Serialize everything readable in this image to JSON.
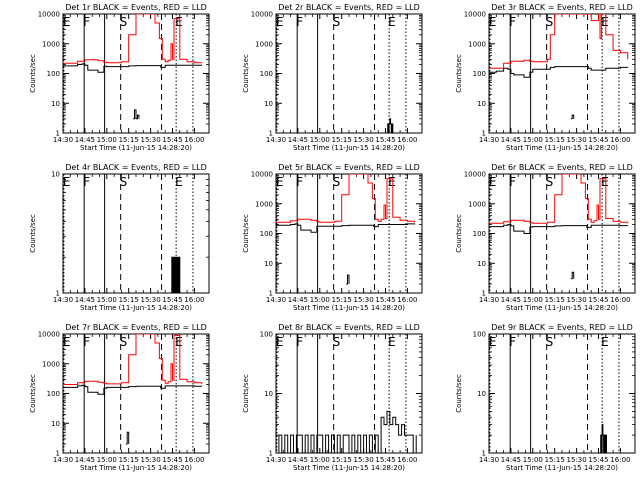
{
  "figure": {
    "x_axis_label": "Start Time (11-Jun-15 14:28:20)",
    "y_axis_label": "Counts/sec",
    "x_tick_labels": [
      "14:30",
      "14:45",
      "15:00",
      "15:15",
      "15:30",
      "15:45",
      "16:00"
    ],
    "x_ticks_minutes": [
      0,
      15,
      30,
      45,
      60,
      75,
      90
    ],
    "x_range_minutes": [
      0,
      100
    ],
    "series_colors": {
      "events": "#000000",
      "lld": "#ff0000"
    },
    "markers": [
      {
        "label": "E",
        "time_min": 0.6,
        "style": "dotted"
      },
      {
        "label": "F",
        "time_min": 14.5,
        "style": "solid"
      },
      {
        "label": "",
        "time_min": 28.5,
        "style": "solid"
      },
      {
        "label": "S",
        "time_min": 39.5,
        "style": "dashed"
      },
      {
        "label": "",
        "time_min": 67.5,
        "style": "dashed"
      },
      {
        "label": "E",
        "time_min": 77.5,
        "style": "dotted"
      },
      {
        "label": "",
        "time_min": 89,
        "style": "dotted"
      }
    ]
  },
  "chart_data": [
    {
      "type": "line",
      "title": "Det 1r BLACK = Events, RED = LLD",
      "xlabel": "Start Time (11-Jun-15 14:28:20)",
      "ylabel": "Counts/sec",
      "yscale": "log",
      "ylim": [
        1,
        10000
      ],
      "y_tick_labels": [
        "1",
        "10",
        "100",
        "1000",
        "10000"
      ],
      "series": [
        {
          "name": "Events",
          "color": "#000000",
          "x": [
            0,
            10,
            13,
            15,
            17,
            24,
            28,
            30,
            45,
            50,
            67,
            70,
            90,
            95
          ],
          "y": [
            180,
            200,
            210,
            190,
            130,
            110,
            175,
            170,
            180,
            185,
            160,
            190,
            190,
            185
          ]
        },
        {
          "name": "LLD",
          "color": "#ff0000",
          "x": [
            0,
            10,
            15,
            24,
            28,
            30,
            40,
            45,
            50,
            55,
            60,
            63,
            66,
            68,
            70,
            72,
            74,
            75,
            76,
            80,
            85,
            90,
            95
          ],
          "y": [
            220,
            260,
            290,
            270,
            240,
            230,
            250,
            2000,
            10000,
            10000,
            10000,
            5000,
            1500,
            300,
            250,
            280,
            1000,
            300,
            7000,
            300,
            250,
            230,
            220
          ]
        },
        {
          "name": "Events (sparse)",
          "color": "#000000",
          "x": [
            48,
            49,
            50,
            51,
            52
          ],
          "y": [
            3,
            6,
            3,
            4,
            3
          ]
        }
      ]
    },
    {
      "type": "line",
      "title": "Det 2r BLACK = Events, RED = LLD",
      "xlabel": "Start Time (11-Jun-15 14:28:20)",
      "ylabel": "Counts/sec",
      "yscale": "log",
      "ylim": [
        1,
        10000
      ],
      "y_tick_labels": [
        "1",
        "10",
        "100",
        "1000",
        "10000"
      ],
      "series": [
        {
          "name": "Events",
          "color": "#000000",
          "x": [
            76,
            76.5,
            77,
            77.5,
            78,
            78.5,
            79,
            79.5,
            80
          ],
          "y": [
            1,
            2,
            1,
            2,
            3,
            2,
            1,
            2,
            1
          ]
        }
      ]
    },
    {
      "type": "line",
      "title": "Det 3r BLACK = Events, RED = LLD",
      "xlabel": "Start Time (11-Jun-15 14:28:20)",
      "ylabel": "Counts/sec",
      "yscale": "log",
      "ylim": [
        1,
        10000
      ],
      "y_tick_labels": [
        "1",
        "10",
        "100",
        "1000",
        "10000"
      ],
      "series": [
        {
          "name": "Events",
          "color": "#000000",
          "x": [
            0,
            5,
            10,
            13,
            15,
            17,
            24,
            28,
            30,
            42,
            45,
            68,
            70,
            80,
            90,
            95
          ],
          "y": [
            110,
            120,
            150,
            140,
            100,
            90,
            75,
            110,
            140,
            160,
            170,
            150,
            130,
            150,
            160,
            155
          ]
        },
        {
          "name": "LLD",
          "color": "#ff0000",
          "x": [
            0,
            10,
            15,
            24,
            28,
            30,
            40,
            42,
            45,
            50,
            60,
            70,
            75,
            76,
            77,
            80,
            85,
            90,
            95
          ],
          "y": [
            150,
            220,
            260,
            280,
            260,
            250,
            300,
            2000,
            10000,
            10000,
            10000,
            6000,
            10000,
            1500,
            10000,
            2000,
            600,
            500,
            300
          ]
        },
        {
          "name": "Events (sparse)",
          "color": "#000000",
          "x": [
            56,
            57,
            58
          ],
          "y": [
            3,
            4,
            3
          ]
        }
      ]
    },
    {
      "type": "line",
      "title": "Det 4r BLACK = Events, RED = LLD",
      "xlabel": "Start Time (11-Jun-15 14:28:20)",
      "ylabel": "Counts/sec",
      "yscale": "log",
      "ylim": [
        1,
        10
      ],
      "y_tick_labels": [
        "1",
        "10"
      ],
      "series": [
        {
          "name": "Events",
          "color": "#000000",
          "x": [
            74,
            74.5,
            75,
            75.5,
            76,
            76.5,
            77,
            77.5,
            78,
            78.5,
            79,
            79.5,
            80
          ],
          "y": [
            1,
            2,
            1,
            2,
            1,
            2,
            1,
            2,
            1,
            2,
            1,
            2,
            1
          ]
        }
      ]
    },
    {
      "type": "line",
      "title": "Det 5r BLACK = Events, RED = LLD",
      "xlabel": "Start Time (11-Jun-15 14:28:20)",
      "ylabel": "Counts/sec",
      "yscale": "log",
      "ylim": [
        1,
        10000
      ],
      "y_tick_labels": [
        "1",
        "10",
        "100",
        "1000",
        "10000"
      ],
      "series": [
        {
          "name": "Events",
          "color": "#000000",
          "x": [
            0,
            10,
            13,
            15,
            17,
            24,
            28,
            30,
            45,
            50,
            67,
            70,
            90,
            95
          ],
          "y": [
            190,
            200,
            210,
            190,
            130,
            110,
            175,
            175,
            185,
            190,
            170,
            200,
            210,
            200
          ]
        },
        {
          "name": "LLD",
          "color": "#ff0000",
          "x": [
            0,
            10,
            15,
            24,
            28,
            30,
            40,
            45,
            50,
            55,
            60,
            63,
            66,
            68,
            70,
            72,
            74,
            75,
            76,
            80,
            85,
            90,
            95
          ],
          "y": [
            240,
            270,
            300,
            280,
            250,
            240,
            260,
            2000,
            10000,
            10000,
            10000,
            5000,
            1500,
            300,
            260,
            300,
            900,
            320,
            7000,
            350,
            280,
            260,
            240
          ]
        },
        {
          "name": "Events (sparse)",
          "color": "#000000",
          "x": [
            48,
            49,
            50
          ],
          "y": [
            2,
            4,
            2
          ]
        }
      ]
    },
    {
      "type": "line",
      "title": "Det 6r BLACK = Events, RED = LLD",
      "xlabel": "Start Time (11-Jun-15 14:28:20)",
      "ylabel": "Counts/sec",
      "yscale": "log",
      "ylim": [
        1,
        10000
      ],
      "y_tick_labels": [
        "1",
        "10",
        "100",
        "1000",
        "10000"
      ],
      "series": [
        {
          "name": "Events",
          "color": "#000000",
          "x": [
            0,
            10,
            13,
            15,
            17,
            24,
            28,
            30,
            45,
            50,
            67,
            70,
            90,
            95
          ],
          "y": [
            170,
            190,
            200,
            180,
            120,
            100,
            165,
            170,
            180,
            185,
            160,
            190,
            185,
            180
          ]
        },
        {
          "name": "LLD",
          "color": "#ff0000",
          "x": [
            0,
            10,
            15,
            24,
            28,
            30,
            40,
            45,
            50,
            55,
            60,
            63,
            66,
            68,
            70,
            72,
            74,
            75,
            76,
            80,
            85,
            90,
            95
          ],
          "y": [
            220,
            250,
            280,
            260,
            230,
            220,
            240,
            2000,
            10000,
            10000,
            10000,
            5000,
            1500,
            300,
            240,
            270,
            900,
            300,
            7000,
            320,
            260,
            240,
            220
          ]
        },
        {
          "name": "Events (sparse)",
          "color": "#000000",
          "x": [
            56,
            57,
            58
          ],
          "y": [
            3,
            5,
            3
          ]
        }
      ]
    },
    {
      "type": "line",
      "title": "Det 7r BLACK = Events, RED = LLD",
      "xlabel": "Start Time (11-Jun-15 14:28:20)",
      "ylabel": "Counts/sec",
      "yscale": "log",
      "ylim": [
        1,
        10000
      ],
      "y_tick_labels": [
        "1",
        "10",
        "100",
        "1000",
        "10000"
      ],
      "series": [
        {
          "name": "Events",
          "color": "#000000",
          "x": [
            0,
            10,
            13,
            15,
            17,
            24,
            28,
            30,
            45,
            50,
            67,
            70,
            90,
            95
          ],
          "y": [
            160,
            180,
            190,
            170,
            110,
            95,
            150,
            160,
            170,
            175,
            150,
            180,
            175,
            170
          ]
        },
        {
          "name": "LLD",
          "color": "#ff0000",
          "x": [
            0,
            10,
            15,
            24,
            28,
            30,
            40,
            45,
            50,
            55,
            60,
            63,
            66,
            68,
            70,
            72,
            74,
            75,
            76,
            80,
            85,
            90,
            95
          ],
          "y": [
            200,
            230,
            260,
            240,
            220,
            210,
            230,
            2000,
            10000,
            10000,
            10000,
            5000,
            1500,
            280,
            220,
            250,
            1000,
            280,
            9000,
            300,
            250,
            230,
            210
          ]
        },
        {
          "name": "Events (sparse)",
          "color": "#000000",
          "x": [
            43,
            44,
            45
          ],
          "y": [
            2,
            5,
            2
          ]
        }
      ]
    },
    {
      "type": "line",
      "title": "Det 8r BLACK = Events, RED = LLD",
      "xlabel": "Start Time (11-Jun-15 14:28:20)",
      "ylabel": "Counts/sec",
      "yscale": "log",
      "ylim": [
        1,
        100
      ],
      "y_tick_labels": [
        "1",
        "10",
        "100"
      ],
      "series": [
        {
          "name": "Events",
          "color": "#000000",
          "x": [
            0,
            2,
            4,
            6,
            8,
            10,
            12,
            14,
            16,
            18,
            20,
            22,
            24,
            26,
            28,
            30,
            32,
            34,
            36,
            38,
            40,
            42,
            44,
            46,
            48,
            50,
            52,
            54,
            56,
            58,
            60,
            62,
            64,
            66,
            68,
            70,
            72,
            74,
            76,
            78,
            80,
            82,
            84,
            86,
            88,
            90,
            92,
            94,
            96
          ],
          "y": [
            1,
            2,
            1,
            2,
            1,
            2,
            1,
            2,
            2,
            1,
            2,
            1,
            2,
            1,
            2,
            2,
            1,
            2,
            1,
            2,
            1,
            2,
            1,
            2,
            2,
            1,
            2,
            1,
            2,
            1,
            2,
            1,
            2,
            1,
            2,
            1,
            4,
            3,
            5,
            3,
            4,
            3,
            2,
            3,
            2,
            2,
            2,
            1,
            2
          ]
        }
      ]
    },
    {
      "type": "line",
      "title": "Det 9r BLACK = Events, RED = LLD",
      "xlabel": "Start Time (11-Jun-15 14:28:20)",
      "ylabel": "Counts/sec",
      "yscale": "log",
      "ylim": [
        1,
        100
      ],
      "y_tick_labels": [
        "1",
        "10",
        "100"
      ],
      "series": [
        {
          "name": "Events",
          "color": "#000000",
          "x": [
            76,
            76.5,
            77,
            77.5,
            78,
            78.5,
            79,
            79.5,
            80,
            80.5,
            81
          ],
          "y": [
            1,
            2,
            1,
            3,
            2,
            1,
            2,
            1,
            2,
            1,
            1
          ]
        }
      ]
    }
  ]
}
